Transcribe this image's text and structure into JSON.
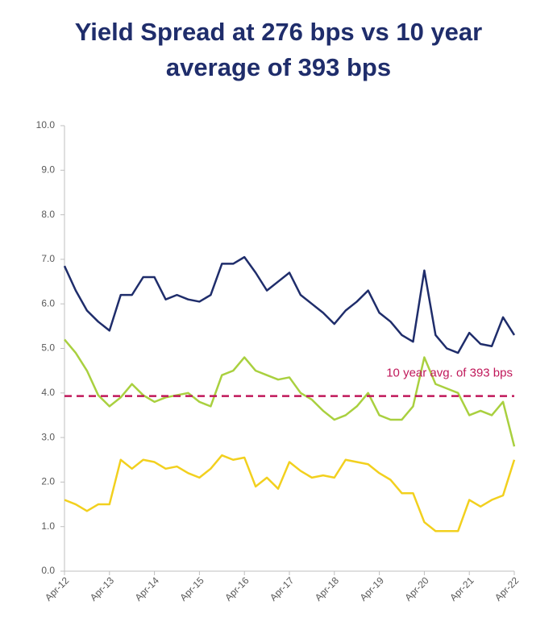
{
  "chart_data": {
    "type": "line",
    "title": "Yield Spread at 276 bps vs 10 year average of 393 bps",
    "categories": [
      "Apr-12",
      null,
      null,
      null,
      "Apr-13",
      null,
      null,
      null,
      "Apr-14",
      null,
      null,
      null,
      "Apr-15",
      null,
      null,
      null,
      "Apr-16",
      null,
      null,
      null,
      "Apr-17",
      null,
      null,
      null,
      "Apr-18",
      null,
      null,
      null,
      "Apr-19",
      null,
      null,
      null,
      "Apr-20",
      null,
      null,
      null,
      "Apr-21",
      null,
      null,
      null,
      "Apr-22"
    ],
    "series": [
      {
        "color": "#1f2d6b",
        "values": [
          6.85,
          6.3,
          5.85,
          5.6,
          5.4,
          6.2,
          6.2,
          6.6,
          6.6,
          6.1,
          6.2,
          6.1,
          6.05,
          6.2,
          6.9,
          6.9,
          7.05,
          6.7,
          6.3,
          6.5,
          6.7,
          6.2,
          6.0,
          5.8,
          5.55,
          5.85,
          6.05,
          6.3,
          5.8,
          5.6,
          5.3,
          5.15,
          6.75,
          5.3,
          5.0,
          4.9,
          5.35,
          5.1,
          5.05,
          5.7,
          5.3
        ]
      },
      {
        "color": "#a9d03f",
        "values": [
          5.2,
          4.9,
          4.5,
          3.95,
          3.7,
          3.9,
          4.2,
          3.95,
          3.8,
          3.9,
          3.95,
          4.0,
          3.8,
          3.7,
          4.4,
          4.5,
          4.8,
          4.5,
          4.4,
          4.3,
          4.35,
          4.0,
          3.85,
          3.6,
          3.4,
          3.5,
          3.7,
          4.0,
          3.5,
          3.4,
          3.4,
          3.7,
          4.8,
          4.2,
          4.1,
          4.0,
          3.5,
          3.6,
          3.5,
          3.8,
          2.8
        ]
      },
      {
        "color": "#f2d01e",
        "values": [
          1.6,
          1.5,
          1.35,
          1.5,
          1.5,
          2.5,
          2.3,
          2.5,
          2.45,
          2.3,
          2.35,
          2.2,
          2.1,
          2.3,
          2.6,
          2.5,
          2.55,
          1.9,
          2.1,
          1.85,
          2.45,
          2.25,
          2.1,
          2.15,
          2.1,
          2.5,
          2.45,
          2.4,
          2.2,
          2.05,
          1.75,
          1.75,
          1.1,
          0.9,
          0.9,
          0.9,
          1.6,
          1.45,
          1.6,
          1.7,
          2.5
        ]
      }
    ],
    "reference_lines": [
      {
        "value": 3.93,
        "label": "10 year avg. of 393 bps",
        "color": "#c0185a"
      }
    ],
    "ylim": [
      0,
      10
    ],
    "yticks": [
      {
        "value": 0,
        "label": "0.0"
      },
      {
        "value": 1,
        "label": "1.0"
      },
      {
        "value": 2,
        "label": "2.0"
      },
      {
        "value": 3,
        "label": "3.0"
      },
      {
        "value": 4,
        "label": "4.0"
      },
      {
        "value": 5,
        "label": "5.0"
      },
      {
        "value": 6,
        "label": "6.0"
      },
      {
        "value": 7,
        "label": "7.0"
      },
      {
        "value": 8,
        "label": "8.0"
      },
      {
        "value": 9,
        "label": "9.0"
      },
      {
        "value": 10,
        "label": "10.0"
      }
    ],
    "grid": false
  }
}
